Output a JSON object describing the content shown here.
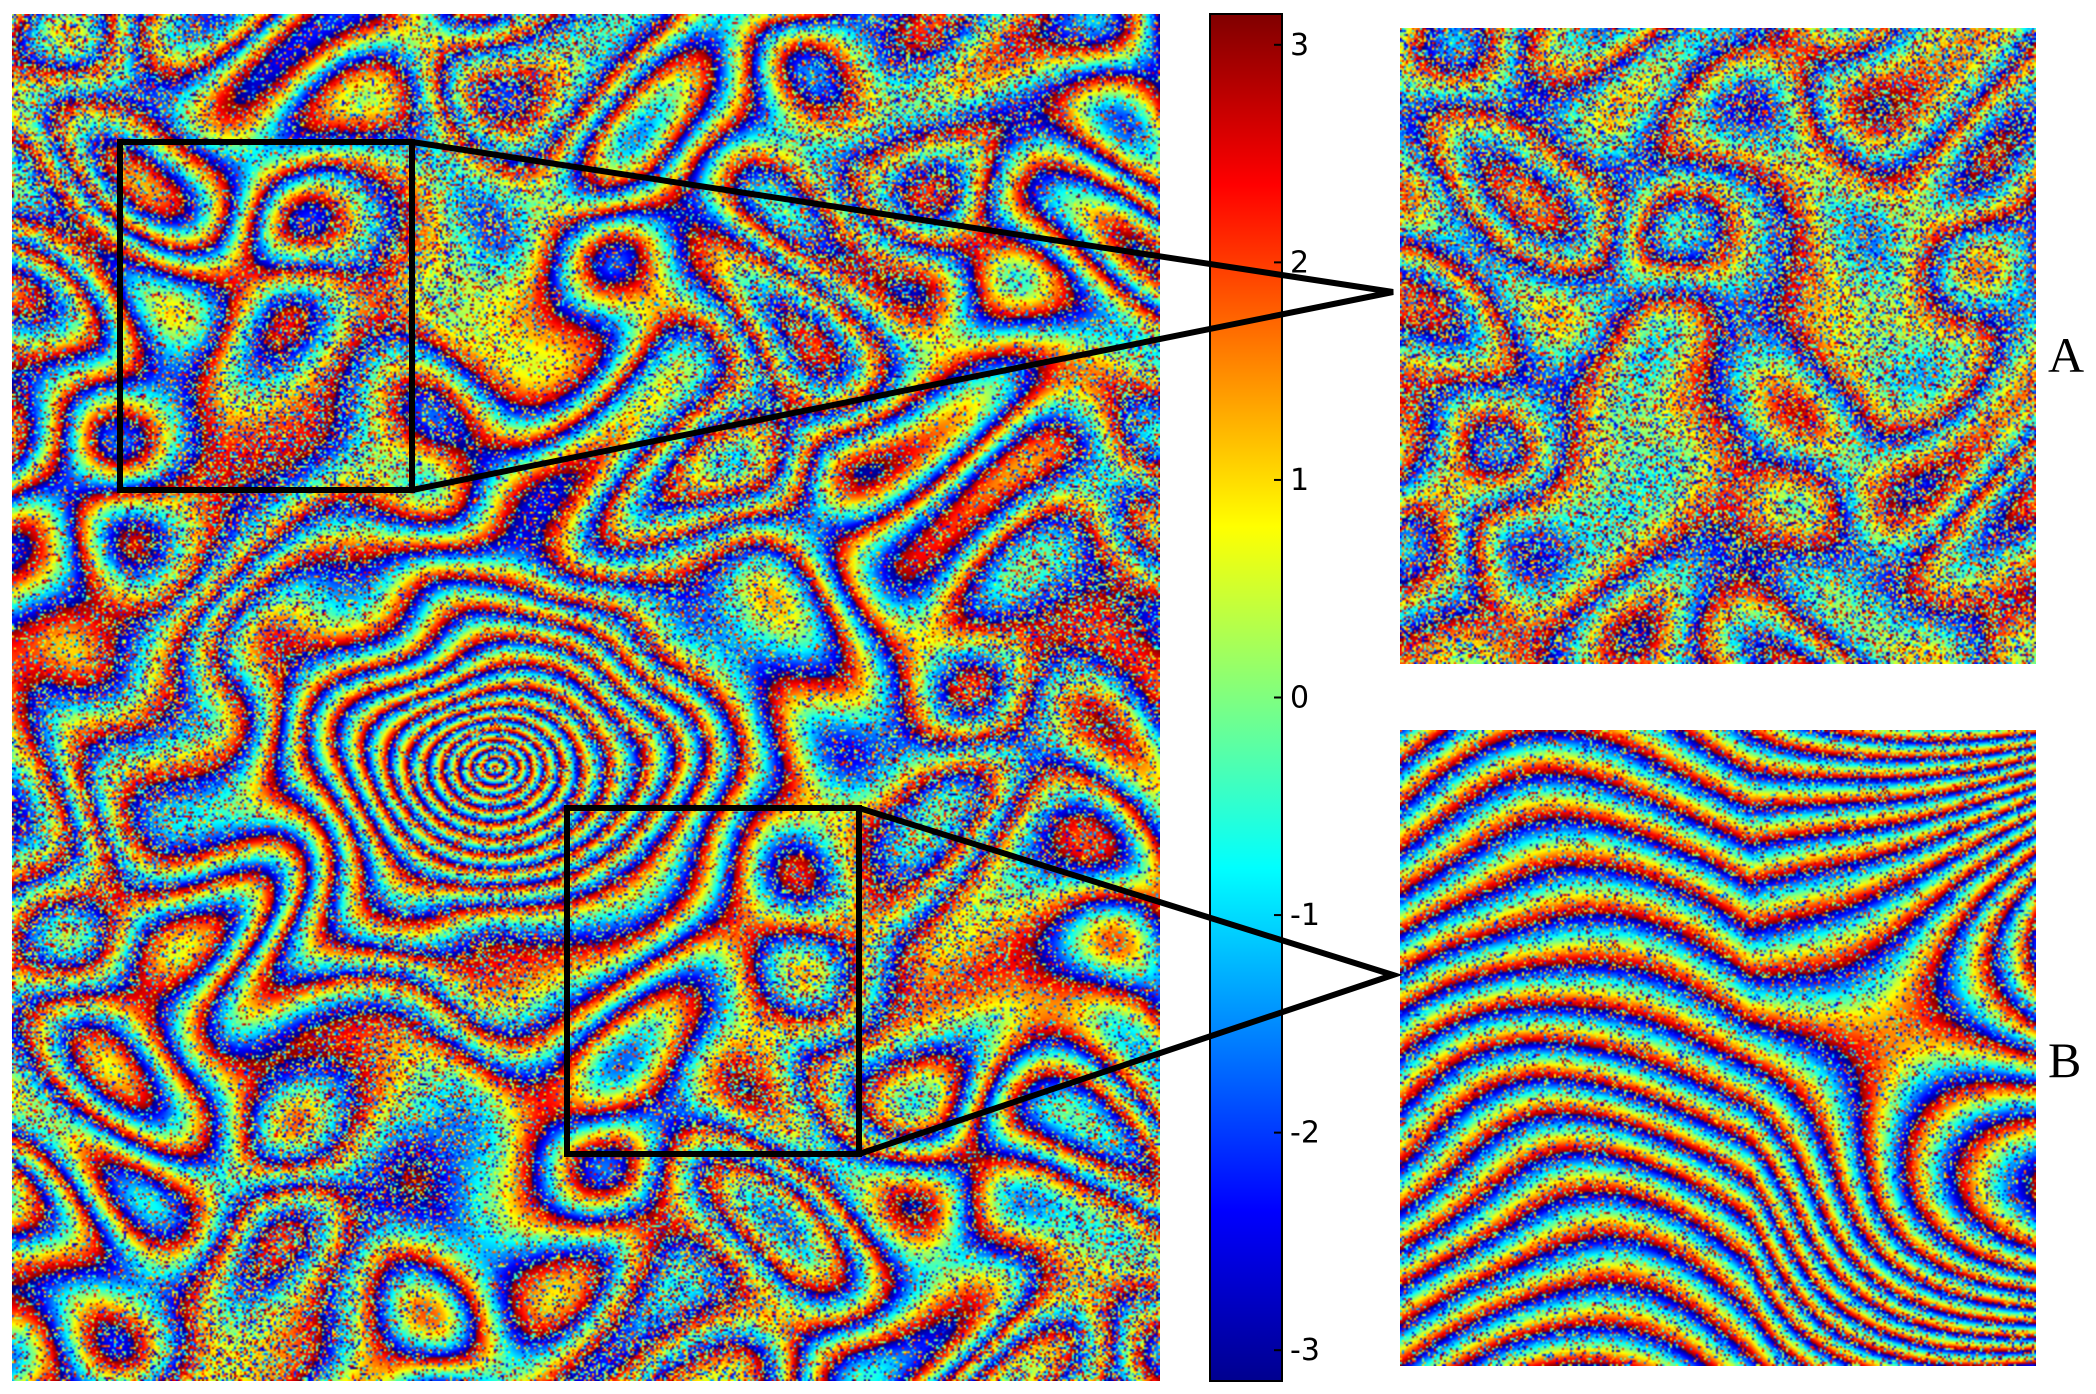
{
  "figure": {
    "colorbar": {
      "range": [
        -3.1416,
        3.1416
      ],
      "ticks": [
        {
          "value": 3,
          "label": "3"
        },
        {
          "value": 2,
          "label": "2"
        },
        {
          "value": 1,
          "label": "1"
        },
        {
          "value": 0,
          "label": "0"
        },
        {
          "value": -1,
          "label": "-1"
        },
        {
          "value": -2,
          "label": "-2"
        },
        {
          "value": -3,
          "label": "-3"
        }
      ],
      "colormap": "jet"
    },
    "insets": [
      {
        "label": "A",
        "texture": "noisy-patchy"
      },
      {
        "label": "B",
        "texture": "dense-fringes"
      }
    ],
    "colors": {
      "outline": "#000000",
      "background": "#ffffff"
    }
  }
}
